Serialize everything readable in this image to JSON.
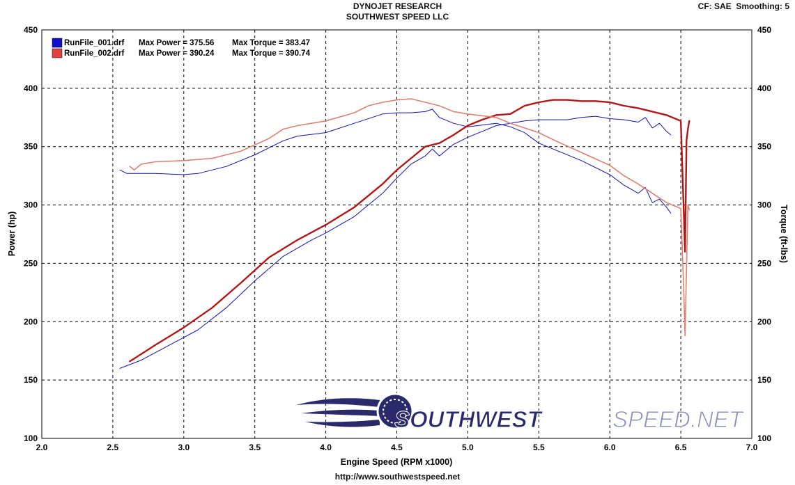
{
  "header": {
    "title_line1": "DYNOJET RESEARCH",
    "title_line2": "SOUTHWEST SPEED LLC",
    "cf_label": "CF: SAE",
    "smoothing_label": "Smoothing: 5"
  },
  "footer": {
    "url": "http://www.southwestspeed.net"
  },
  "watermark": {
    "text_bold": "SOUTHWEST",
    "text_light": "SPEED.NET"
  },
  "chart_data": {
    "type": "line",
    "xlabel": "Engine Speed (RPM x1000)",
    "ylabel": "Power (hp)",
    "y2label": "Torque (ft-lbs)",
    "xlim": [
      2.0,
      7.0
    ],
    "ylim": [
      100,
      450
    ],
    "y2lim": [
      100,
      450
    ],
    "xticks": [
      "2.0",
      "2.5",
      "3.0",
      "3.5",
      "4.0",
      "4.5",
      "5.0",
      "5.5",
      "6.0",
      "6.5",
      "7.0"
    ],
    "yticks": [
      "100",
      "150",
      "200",
      "250",
      "300",
      "350",
      "400",
      "450"
    ],
    "grid": true,
    "legend_position": "top-left",
    "legend": [
      {
        "file": "RunFile_001.drf",
        "power_label": "Max Power = 375.56",
        "torque_label": "Max Torque = 383.47",
        "color": "#1010c8"
      },
      {
        "file": "RunFile_002.drf",
        "power_label": "Max Power = 390.24",
        "torque_label": "Max Torque = 390.74",
        "color": "#e04040"
      }
    ],
    "series": [
      {
        "name": "RunFile_001.drf Power",
        "color": "#1010b0",
        "width": 1,
        "x": [
          2.55,
          2.7,
          2.9,
          3.1,
          3.3,
          3.5,
          3.7,
          3.9,
          4.0,
          4.2,
          4.4,
          4.5,
          4.6,
          4.7,
          4.75,
          4.8,
          4.9,
          5.0,
          5.1,
          5.2,
          5.3,
          5.4,
          5.5,
          5.6,
          5.7,
          5.8,
          5.9,
          6.0,
          6.1,
          6.2,
          6.25,
          6.3,
          6.35,
          6.4,
          6.43
        ],
        "values": [
          160,
          167,
          180,
          193,
          212,
          235,
          256,
          270,
          276,
          290,
          310,
          323,
          335,
          342,
          348,
          342,
          352,
          358,
          363,
          368,
          370,
          372,
          373,
          373,
          373,
          375,
          376,
          374,
          373,
          371,
          375,
          366,
          370,
          363,
          360
        ]
      },
      {
        "name": "RunFile_001.drf Torque",
        "color": "#1010b0",
        "width": 1,
        "x": [
          2.55,
          2.6,
          2.8,
          3.0,
          3.1,
          3.3,
          3.5,
          3.7,
          3.8,
          4.0,
          4.2,
          4.4,
          4.5,
          4.6,
          4.7,
          4.75,
          4.8,
          4.9,
          5.0,
          5.2,
          5.3,
          5.4,
          5.5,
          5.6,
          5.8,
          6.0,
          6.1,
          6.2,
          6.25,
          6.3,
          6.35,
          6.4,
          6.43
        ],
        "values": [
          330,
          327,
          327,
          326,
          327,
          333,
          343,
          355,
          359,
          362,
          370,
          378,
          379,
          379,
          380,
          382,
          375,
          370,
          367,
          370,
          367,
          362,
          353,
          348,
          338,
          326,
          317,
          310,
          315,
          302,
          305,
          298,
          293
        ]
      },
      {
        "name": "RunFile_002.drf Power",
        "color": "#b01818",
        "width": 2.4,
        "x": [
          2.62,
          2.8,
          3.0,
          3.2,
          3.4,
          3.6,
          3.8,
          4.0,
          4.2,
          4.4,
          4.5,
          4.6,
          4.7,
          4.8,
          4.9,
          5.0,
          5.1,
          5.2,
          5.3,
          5.4,
          5.5,
          5.6,
          5.7,
          5.8,
          5.9,
          6.0,
          6.1,
          6.2,
          6.3,
          6.4,
          6.5,
          6.53,
          6.54,
          6.55,
          6.56
        ],
        "values": [
          166,
          180,
          195,
          212,
          233,
          255,
          270,
          283,
          298,
          318,
          330,
          340,
          350,
          353,
          360,
          368,
          373,
          377,
          378,
          385,
          388,
          390,
          390,
          389,
          389,
          388,
          385,
          383,
          380,
          377,
          372,
          260,
          355,
          365,
          372
        ]
      },
      {
        "name": "RunFile_002.drf Torque",
        "color": "#dd8070",
        "width": 1.6,
        "x": [
          2.62,
          2.65,
          2.7,
          2.8,
          3.0,
          3.2,
          3.4,
          3.6,
          3.7,
          3.8,
          4.0,
          4.2,
          4.3,
          4.4,
          4.5,
          4.6,
          4.7,
          4.8,
          4.9,
          5.0,
          5.2,
          5.3,
          5.4,
          5.5,
          5.6,
          5.8,
          6.0,
          6.1,
          6.2,
          6.3,
          6.4,
          6.5,
          6.52,
          6.53,
          6.55,
          6.56
        ],
        "values": [
          333,
          330,
          335,
          337,
          338,
          340,
          346,
          357,
          365,
          368,
          372,
          379,
          385,
          388,
          390,
          391,
          388,
          385,
          380,
          378,
          375,
          370,
          366,
          362,
          356,
          345,
          334,
          325,
          318,
          310,
          302,
          297,
          230,
          188,
          300,
          296
        ]
      }
    ]
  }
}
